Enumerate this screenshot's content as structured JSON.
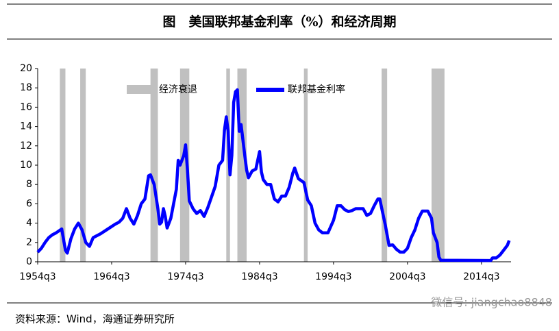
{
  "chart_data": {
    "type": "line",
    "title": "图　美国联邦基金利率（%）和经济周期",
    "source": "资料来源：Wind，海通证券研究所",
    "watermark": "微信号: jiangchao8848",
    "legend": "top",
    "xlim": [
      1954.5,
      2018.5
    ],
    "xticks": [
      {
        "value": 1954.5,
        "label": "1954q3"
      },
      {
        "value": 1964.5,
        "label": "1964q3"
      },
      {
        "value": 1974.5,
        "label": "1974q3"
      },
      {
        "value": 1984.5,
        "label": "1984q3"
      },
      {
        "value": 1994.5,
        "label": "1994q3"
      },
      {
        "value": 2004.5,
        "label": "2004q3"
      },
      {
        "value": 2014.5,
        "label": "2014q3"
      }
    ],
    "ylim": [
      0,
      20
    ],
    "yticks": [
      0,
      2,
      4,
      6,
      8,
      10,
      12,
      14,
      16,
      18,
      20
    ],
    "recessions": {
      "name": "经济衰退",
      "color": "#c0c0c0",
      "spans": [
        [
          1957.5,
          1958.25
        ],
        [
          1960.25,
          1961.0
        ],
        [
          1969.75,
          1970.75
        ],
        [
          1973.75,
          1975.0
        ],
        [
          1980.0,
          1980.5
        ],
        [
          1981.5,
          1982.75
        ],
        [
          1990.5,
          1991.0
        ],
        [
          2001.0,
          2001.75
        ],
        [
          2007.75,
          2009.5
        ]
      ]
    },
    "x": [
      1954.5,
      1955.0,
      1955.5,
      1956.0,
      1956.5,
      1957.0,
      1957.75,
      1958.25,
      1958.5,
      1959.0,
      1959.5,
      1960.0,
      1960.5,
      1961.0,
      1961.5,
      1962.0,
      1963.0,
      1964.0,
      1965.0,
      1965.5,
      1966.0,
      1966.5,
      1967.0,
      1967.5,
      1968.0,
      1968.5,
      1969.0,
      1969.5,
      1969.75,
      1970.25,
      1970.75,
      1971.0,
      1971.25,
      1971.5,
      1971.75,
      1972.0,
      1972.5,
      1973.0,
      1973.25,
      1973.5,
      1973.75,
      1974.25,
      1974.5,
      1974.75,
      1975.0,
      1975.5,
      1976.0,
      1976.5,
      1977.0,
      1977.5,
      1978.0,
      1978.5,
      1979.0,
      1979.5,
      1979.75,
      1980.0,
      1980.25,
      1980.5,
      1980.75,
      1981.0,
      1981.25,
      1981.5,
      1981.75,
      1982.0,
      1982.5,
      1982.75,
      1983.0,
      1983.5,
      1984.0,
      1984.5,
      1984.75,
      1985.0,
      1985.5,
      1986.0,
      1986.5,
      1987.0,
      1987.5,
      1988.0,
      1988.5,
      1989.0,
      1989.25,
      1989.75,
      1990.5,
      1991.0,
      1991.5,
      1992.0,
      1992.5,
      1993.0,
      1993.75,
      1994.5,
      1995.0,
      1995.5,
      1996.0,
      1996.5,
      1997.0,
      1997.5,
      1998.0,
      1998.5,
      1999.0,
      1999.5,
      2000.0,
      2000.5,
      2000.75,
      2001.0,
      2001.5,
      2002.0,
      2002.5,
      2003.0,
      2003.5,
      2004.0,
      2004.5,
      2005.0,
      2005.5,
      2006.0,
      2006.5,
      2007.25,
      2007.75,
      2008.0,
      2008.5,
      2008.75,
      2009.0,
      2015.75,
      2016.0,
      2016.5,
      2017.0,
      2017.5,
      2018.0,
      2018.25
    ],
    "series": [
      {
        "name": "联邦基金利率",
        "color": "#0000ff",
        "values": [
          1.0,
          1.4,
          2.0,
          2.5,
          2.8,
          3.0,
          3.4,
          1.2,
          0.9,
          2.4,
          3.4,
          4.0,
          3.3,
          2.0,
          1.6,
          2.5,
          2.9,
          3.4,
          3.9,
          4.1,
          4.5,
          5.5,
          4.5,
          3.9,
          4.8,
          6.0,
          6.5,
          8.9,
          9.0,
          8.0,
          5.5,
          3.9,
          4.1,
          5.5,
          4.7,
          3.5,
          4.5,
          6.5,
          7.5,
          10.5,
          10.0,
          11.0,
          12.1,
          9.5,
          6.3,
          5.5,
          5.0,
          5.3,
          4.7,
          5.6,
          6.7,
          7.8,
          10.0,
          10.5,
          13.6,
          15.0,
          13.5,
          9.0,
          11.0,
          16.5,
          17.6,
          17.8,
          13.5,
          14.2,
          11.0,
          9.5,
          8.7,
          9.4,
          9.6,
          11.4,
          9.3,
          8.5,
          8.0,
          8.0,
          6.5,
          6.2,
          6.8,
          6.8,
          7.7,
          9.2,
          9.7,
          8.6,
          8.2,
          6.4,
          5.8,
          4.0,
          3.3,
          3.0,
          3.0,
          4.3,
          5.8,
          5.8,
          5.4,
          5.2,
          5.3,
          5.5,
          5.5,
          5.5,
          4.8,
          5.0,
          5.8,
          6.5,
          6.5,
          5.6,
          3.8,
          1.7,
          1.75,
          1.3,
          1.0,
          1.0,
          1.4,
          2.5,
          3.3,
          4.5,
          5.25,
          5.25,
          4.5,
          3.0,
          2.0,
          0.5,
          0.16,
          0.13,
          0.4,
          0.4,
          0.7,
          1.2,
          1.7,
          2.2
        ]
      }
    ]
  }
}
